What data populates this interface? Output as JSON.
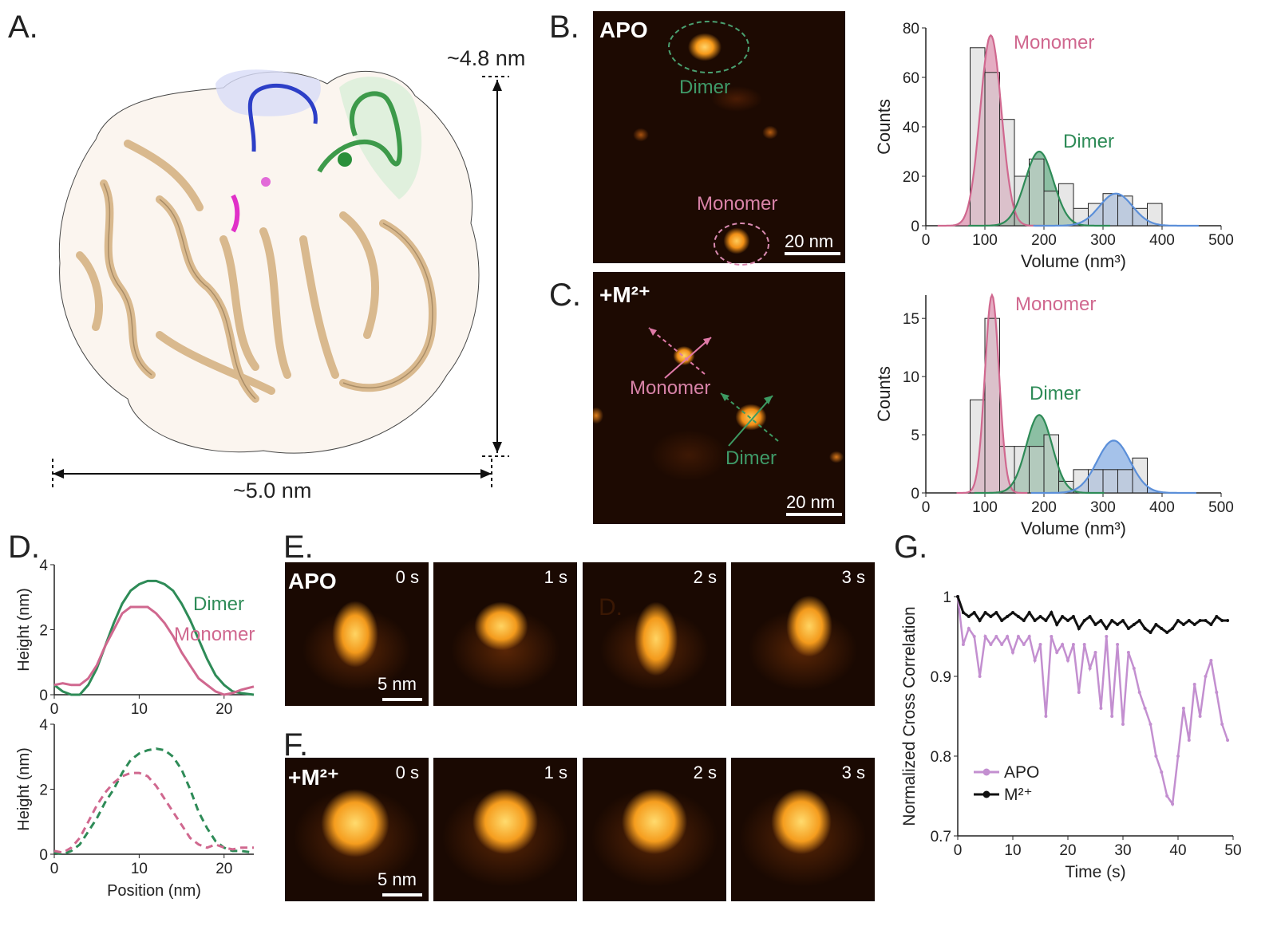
{
  "panels": {
    "a": "A.",
    "b": "B.",
    "c": "C.",
    "d": "D.",
    "e": "E.",
    "f": "F.",
    "g": "G."
  },
  "structure": {
    "height_label": "~4.8 nm",
    "width_label": "~5.0 nm"
  },
  "afm_b": {
    "tag": "APO",
    "dimer_label": "Dimer",
    "monomer_label": "Monomer",
    "scale_label": "20 nm"
  },
  "afm_c": {
    "tag": "+M²⁺",
    "monomer_label": "Monomer",
    "dimer_label": "Dimer",
    "scale_label": "20 nm"
  },
  "frames_e": {
    "tag": "APO",
    "times": [
      "0 s",
      "1 s",
      "2 s",
      "3 s"
    ],
    "artifact": "D.",
    "scale_label": "5 nm"
  },
  "frames_f": {
    "tag": "+M²⁺",
    "times": [
      "0 s",
      "1 s",
      "2 s",
      "3 s"
    ],
    "scale_label": "5 nm"
  },
  "colors": {
    "monomer": "#d0688f",
    "dimer": "#2e8b57",
    "third": "#5b8fd9",
    "bar": "#d4d4d4",
    "apo_line": "#c38fd0",
    "m_line": "#111111"
  },
  "chart_data": [
    {
      "id": "hist_apo",
      "type": "bar",
      "xlabel": "Volume (nm³)",
      "ylabel": "Counts",
      "xlim": [
        0,
        500
      ],
      "ylim": [
        0,
        80
      ],
      "xticks": [
        0,
        100,
        200,
        300,
        400,
        500
      ],
      "yticks": [
        0,
        20,
        40,
        60,
        80
      ],
      "bin_edges": [
        75,
        100,
        125,
        150,
        175,
        200,
        225,
        250,
        275,
        300,
        325,
        350,
        375,
        400
      ],
      "counts": [
        72,
        62,
        43,
        20,
        27,
        14,
        17,
        7,
        9,
        13,
        12,
        7,
        9
      ],
      "fits": [
        {
          "label": "Monomer",
          "mean": 110,
          "sd": 18,
          "amp": 77
        },
        {
          "label": "Dimer",
          "mean": 192,
          "sd": 24,
          "amp": 30
        },
        {
          "label": "",
          "mean": 322,
          "sd": 28,
          "amp": 13
        }
      ]
    },
    {
      "id": "hist_m2",
      "type": "bar",
      "xlabel": "Volume (nm³)",
      "ylabel": "Counts",
      "xlim": [
        0,
        500
      ],
      "ylim": [
        0,
        17
      ],
      "xticks": [
        0,
        100,
        200,
        300,
        400,
        500
      ],
      "yticks": [
        0,
        5,
        10,
        15
      ],
      "bin_edges": [
        75,
        100,
        125,
        150,
        175,
        200,
        225,
        250,
        275,
        300,
        325,
        350,
        375
      ],
      "counts": [
        8,
        15,
        4,
        4,
        4,
        5,
        1,
        2,
        2,
        2,
        2,
        3
      ],
      "fits": [
        {
          "label": "Monomer",
          "mean": 112,
          "sd": 12,
          "amp": 17
        },
        {
          "label": "Dimer",
          "mean": 192,
          "sd": 22,
          "amp": 6.7
        },
        {
          "label": "",
          "mean": 318,
          "sd": 28,
          "amp": 4.5
        }
      ]
    },
    {
      "id": "profile_solid",
      "type": "line",
      "ylabel": "Height (nm)",
      "xlim": [
        0,
        23.5
      ],
      "ylim": [
        0,
        4
      ],
      "xticks": [
        0,
        10,
        20
      ],
      "yticks": [
        0,
        2,
        4
      ],
      "series": [
        {
          "name": "Dimer",
          "x": [
            0,
            1,
            2,
            3,
            4,
            5,
            6,
            7,
            8,
            9,
            10,
            11,
            12,
            13,
            14,
            15,
            16,
            17,
            18,
            19,
            20,
            21,
            22,
            23.5
          ],
          "y": [
            0.3,
            0.1,
            0.0,
            0.0,
            0.3,
            0.8,
            1.5,
            2.2,
            2.8,
            3.2,
            3.4,
            3.5,
            3.5,
            3.4,
            3.2,
            2.8,
            2.3,
            1.7,
            1.1,
            0.6,
            0.3,
            0.1,
            0.05,
            0.0
          ]
        },
        {
          "name": "Monomer",
          "x": [
            0,
            1,
            2,
            3,
            4,
            5,
            6,
            7,
            8,
            9,
            10,
            11,
            12,
            13,
            14,
            15,
            16,
            17,
            18,
            19,
            20,
            21,
            22,
            23.5
          ],
          "y": [
            0.3,
            0.35,
            0.3,
            0.3,
            0.5,
            0.9,
            1.5,
            2.0,
            2.5,
            2.7,
            2.7,
            2.7,
            2.5,
            2.2,
            1.8,
            1.3,
            0.9,
            0.5,
            0.3,
            0.1,
            0.0,
            0.05,
            0.15,
            0.25
          ]
        }
      ]
    },
    {
      "id": "profile_dashed",
      "type": "line",
      "xlabel": "Position (nm)",
      "ylabel": "Height (nm)",
      "xlim": [
        0,
        23.5
      ],
      "ylim": [
        0,
        4
      ],
      "xticks": [
        0,
        10,
        20
      ],
      "yticks": [
        0,
        2,
        4
      ],
      "series": [
        {
          "x": [
            0,
            1,
            2,
            3,
            4,
            5,
            6,
            7,
            8,
            9,
            10,
            11,
            12,
            13,
            14,
            15,
            16,
            17,
            18,
            19,
            20,
            21,
            22,
            23.5
          ],
          "y": [
            0.05,
            0.0,
            0.1,
            0.3,
            0.7,
            1.1,
            1.6,
            2.0,
            2.5,
            2.9,
            3.1,
            3.2,
            3.25,
            3.2,
            3.0,
            2.6,
            2.0,
            1.3,
            0.8,
            0.4,
            0.2,
            0.1,
            0.1,
            0.05
          ]
        },
        {
          "x": [
            0,
            1,
            2,
            3,
            4,
            5,
            6,
            7,
            8,
            9,
            10,
            11,
            12,
            13,
            14,
            15,
            16,
            17,
            18,
            19,
            20,
            21,
            22,
            23.5
          ],
          "y": [
            0.1,
            0.05,
            0.2,
            0.5,
            1.0,
            1.5,
            1.9,
            2.2,
            2.4,
            2.5,
            2.5,
            2.4,
            2.1,
            1.7,
            1.3,
            0.9,
            0.5,
            0.3,
            0.2,
            0.3,
            0.2,
            0.15,
            0.2,
            0.2
          ]
        }
      ]
    },
    {
      "id": "cross_correlation",
      "type": "line",
      "xlabel": "Time (s)",
      "ylabel": "Normalized Cross Correlation",
      "xlim": [
        0,
        50
      ],
      "ylim": [
        0.7,
        1.0
      ],
      "xticks": [
        0,
        10,
        20,
        30,
        40,
        50
      ],
      "yticks": [
        0.7,
        0.8,
        0.9,
        1
      ],
      "series": [
        {
          "name": "APO",
          "x": [
            0,
            1,
            2,
            3,
            4,
            5,
            6,
            7,
            8,
            9,
            10,
            11,
            12,
            13,
            14,
            15,
            16,
            17,
            18,
            19,
            20,
            21,
            22,
            23,
            24,
            25,
            26,
            27,
            28,
            29,
            30,
            31,
            32,
            33,
            34,
            35,
            36,
            37,
            38,
            39,
            40,
            41,
            42,
            43,
            44,
            45,
            46,
            47,
            48,
            49
          ],
          "y": [
            1.0,
            0.94,
            0.96,
            0.95,
            0.9,
            0.95,
            0.94,
            0.95,
            0.94,
            0.95,
            0.93,
            0.95,
            0.94,
            0.95,
            0.92,
            0.94,
            0.85,
            0.95,
            0.93,
            0.94,
            0.92,
            0.94,
            0.88,
            0.94,
            0.91,
            0.93,
            0.86,
            0.95,
            0.85,
            0.94,
            0.84,
            0.93,
            0.91,
            0.88,
            0.86,
            0.84,
            0.8,
            0.78,
            0.75,
            0.74,
            0.8,
            0.86,
            0.82,
            0.89,
            0.85,
            0.9,
            0.92,
            0.88,
            0.84,
            0.82
          ]
        },
        {
          "name": "M²⁺",
          "x": [
            0,
            1,
            2,
            3,
            4,
            5,
            6,
            7,
            8,
            9,
            10,
            11,
            12,
            13,
            14,
            15,
            16,
            17,
            18,
            19,
            20,
            21,
            22,
            23,
            24,
            25,
            26,
            27,
            28,
            29,
            30,
            31,
            32,
            33,
            34,
            35,
            36,
            37,
            38,
            39,
            40,
            41,
            42,
            43,
            44,
            45,
            46,
            47,
            48,
            49
          ],
          "y": [
            1.0,
            0.98,
            0.975,
            0.98,
            0.97,
            0.98,
            0.975,
            0.98,
            0.97,
            0.975,
            0.98,
            0.975,
            0.97,
            0.98,
            0.97,
            0.975,
            0.97,
            0.98,
            0.965,
            0.975,
            0.97,
            0.975,
            0.96,
            0.97,
            0.975,
            0.965,
            0.97,
            0.96,
            0.97,
            0.965,
            0.97,
            0.96,
            0.965,
            0.97,
            0.96,
            0.955,
            0.965,
            0.96,
            0.955,
            0.96,
            0.97,
            0.965,
            0.97,
            0.965,
            0.97,
            0.97,
            0.965,
            0.975,
            0.97,
            0.97
          ]
        }
      ]
    }
  ]
}
